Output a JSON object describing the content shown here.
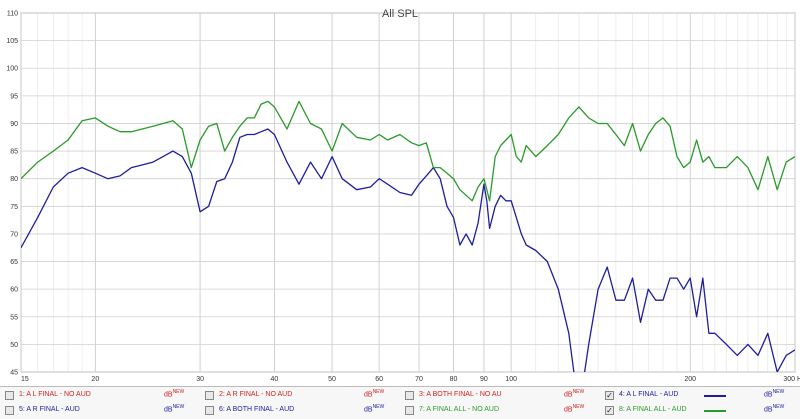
{
  "chart_data": {
    "type": "line",
    "title": "All SPL",
    "xscale": "log",
    "xlim": [
      15,
      300
    ],
    "ylim": [
      45,
      110
    ],
    "x_unit": "Hz",
    "xticks": [
      15,
      20,
      30,
      40,
      50,
      60,
      70,
      80,
      90,
      100,
      200,
      300
    ],
    "yticks": [
      45,
      50,
      55,
      60,
      65,
      70,
      75,
      80,
      85,
      90,
      95,
      100,
      105,
      110
    ],
    "grid": true,
    "series": [
      {
        "name": "4: A L FINAL - AUD",
        "color": "#1e1e9e",
        "x": [
          15,
          16,
          17,
          18,
          19,
          20,
          21,
          22,
          23,
          24,
          25,
          26,
          27,
          28,
          29,
          30,
          31,
          32,
          33,
          34,
          35,
          36,
          37,
          38,
          39,
          40,
          42,
          44,
          46,
          48,
          50,
          52,
          55,
          58,
          60,
          62,
          65,
          68,
          70,
          72,
          74,
          76,
          78,
          80,
          82,
          84,
          86,
          88,
          90,
          91,
          92,
          94,
          96,
          98,
          100,
          102,
          104,
          106,
          110,
          115,
          120,
          125,
          130,
          135,
          140,
          145,
          150,
          155,
          160,
          165,
          170,
          175,
          180,
          185,
          190,
          195,
          200,
          205,
          210,
          215,
          220,
          230,
          240,
          250,
          260,
          270,
          280,
          290,
          300
        ],
        "y": [
          67.5,
          73,
          78.5,
          81,
          82,
          81,
          80,
          80.5,
          82,
          82.5,
          83,
          84,
          85,
          84,
          81,
          74,
          75,
          79.5,
          80,
          83,
          87.5,
          88,
          88,
          88.5,
          89,
          88,
          83,
          79,
          83,
          80,
          84,
          80,
          78,
          78.5,
          80,
          79,
          77.5,
          77,
          79,
          80.5,
          82,
          80,
          75,
          73,
          68,
          70,
          68,
          72,
          79,
          76,
          71,
          75,
          77,
          76,
          76,
          73,
          70,
          68,
          67,
          65,
          60,
          52,
          38,
          50,
          60,
          64,
          58,
          58,
          62,
          54,
          60,
          58,
          58,
          62,
          62,
          60,
          62,
          55,
          62,
          52,
          52,
          50,
          48,
          50,
          48,
          52,
          45,
          48,
          49
        ]
      },
      {
        "name": "8: A FINAL ALL - AUD",
        "color": "#2a9a2a",
        "x": [
          15,
          16,
          17,
          18,
          19,
          20,
          21,
          22,
          23,
          24,
          25,
          26,
          27,
          28,
          29,
          30,
          31,
          32,
          33,
          34,
          35,
          36,
          37,
          38,
          39,
          40,
          42,
          44,
          46,
          48,
          50,
          52,
          55,
          58,
          60,
          62,
          65,
          68,
          70,
          72,
          74,
          76,
          78,
          80,
          82,
          84,
          86,
          88,
          90,
          91,
          92,
          94,
          96,
          98,
          100,
          102,
          104,
          106,
          110,
          115,
          120,
          125,
          130,
          135,
          140,
          145,
          150,
          155,
          160,
          165,
          170,
          175,
          180,
          185,
          190,
          195,
          200,
          205,
          210,
          215,
          220,
          230,
          240,
          250,
          260,
          270,
          280,
          290,
          300
        ],
        "y": [
          80,
          83,
          85,
          87,
          90.5,
          91,
          89.5,
          88.5,
          88.5,
          89,
          89.5,
          90,
          90.5,
          89,
          82,
          87,
          89.5,
          90,
          85,
          87.5,
          89.5,
          91,
          91,
          93.5,
          94,
          93,
          89,
          94,
          90,
          89,
          85,
          90,
          87.5,
          87,
          88,
          87,
          88,
          86.5,
          86,
          86.5,
          82,
          82,
          81,
          80,
          78,
          77,
          76,
          78.5,
          80,
          78,
          76,
          84,
          86,
          87,
          88,
          84,
          83,
          86,
          84,
          86,
          88,
          91,
          93,
          91,
          90,
          90,
          88,
          86,
          90,
          85,
          88,
          90,
          91,
          89.5,
          84,
          82,
          83,
          87,
          83,
          84,
          82,
          82,
          84,
          82,
          78,
          84,
          78,
          83,
          84
        ]
      }
    ]
  },
  "legend": {
    "unit": "dB",
    "unit_sup": "NEW",
    "rows": [
      [
        {
          "label": "1: A L FINAL - NO AUD",
          "checked": "",
          "color": "#cc2222",
          "unit_color": "#cc2222"
        },
        {
          "label": "2: A R FINAL - NO AUD",
          "checked": "",
          "color": "#cc2222",
          "unit_color": "#cc2222"
        },
        {
          "label": "3: A BOTH FINAL - NO AU",
          "checked": "",
          "color": "#cc2222",
          "unit_color": "#cc2222"
        },
        {
          "label": "4: A L FINAL - AUD",
          "checked": "✓",
          "color": "#1e1e9e",
          "unit_color": "#1e1e9e"
        }
      ],
      [
        {
          "label": "5: A R FINAL - AUD",
          "checked": "",
          "color": "#1e1e9e",
          "unit_color": "#1e1e9e"
        },
        {
          "label": "6: A BOTH FINAL - AUD",
          "checked": "",
          "color": "#1e1e9e",
          "unit_color": "#1e1e9e"
        },
        {
          "label": "7: A FINAL ALL - NO AUD",
          "checked": "",
          "color": "#2a9a2a",
          "unit_color": "#cc2222"
        },
        {
          "label": "8: A FINAL ALL - AUD",
          "checked": "✓",
          "color": "#2a9a2a",
          "unit_color": "#1e1e9e"
        }
      ]
    ]
  }
}
